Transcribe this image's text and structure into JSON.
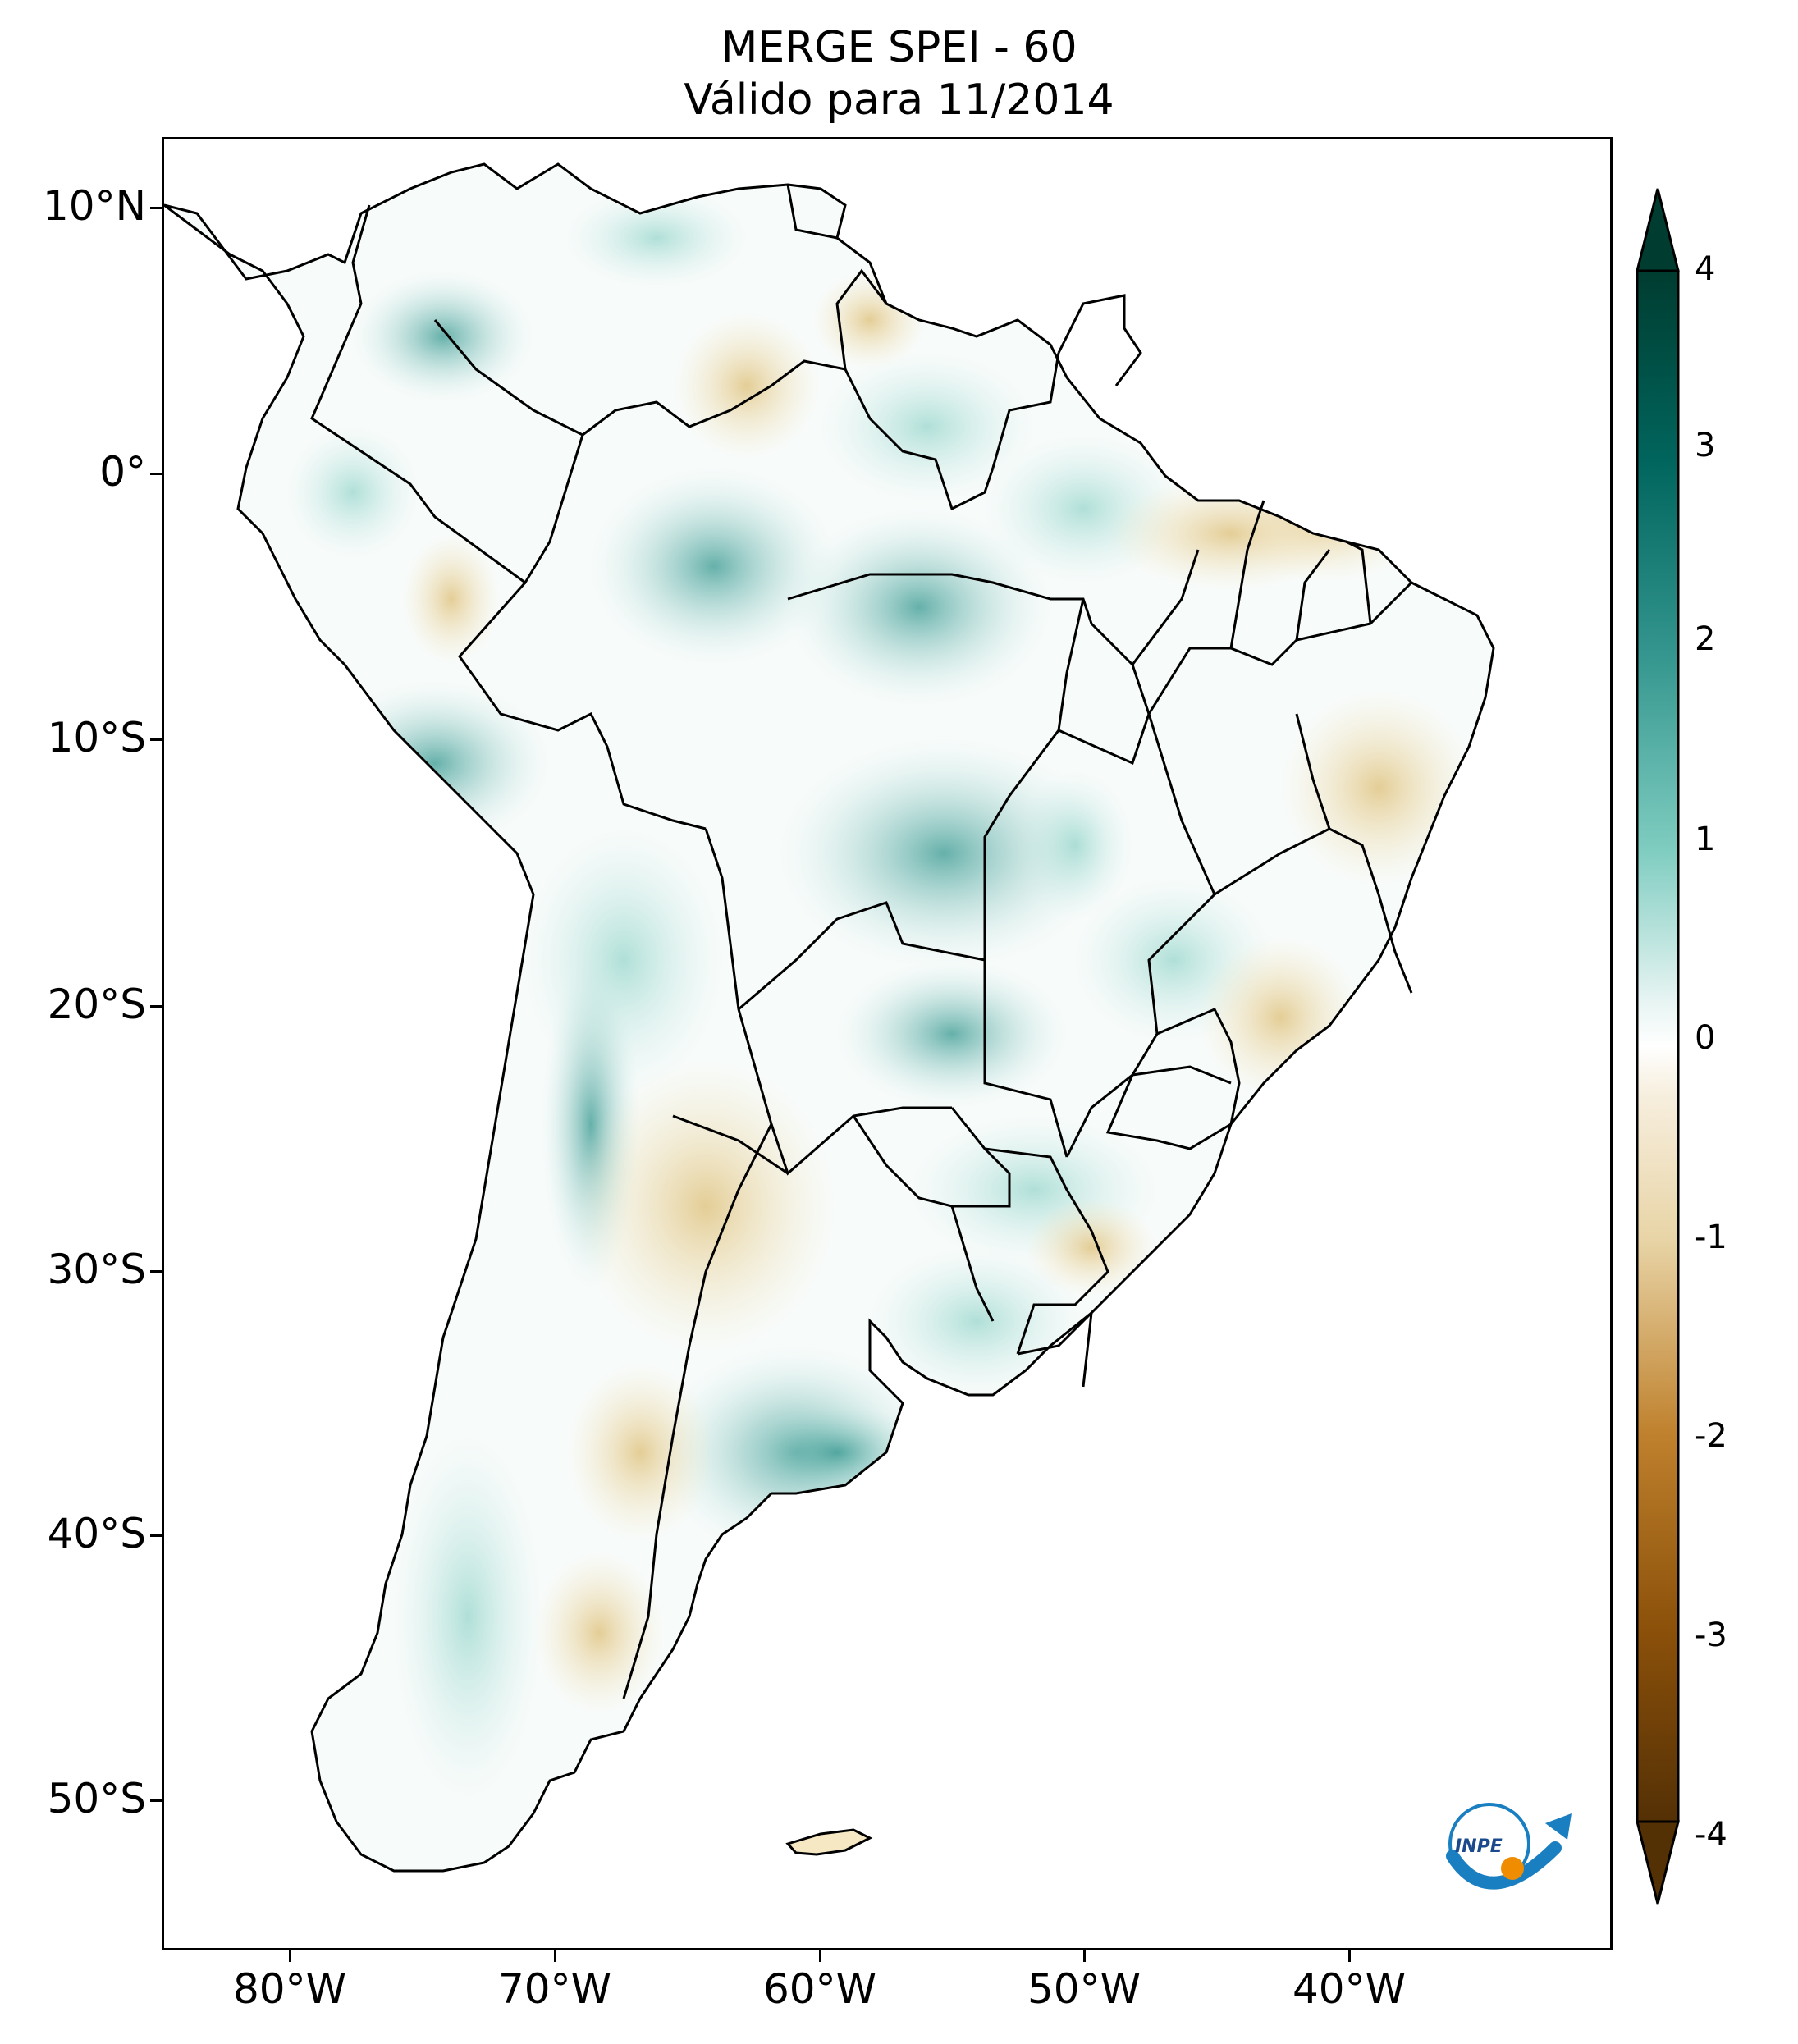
{
  "title": {
    "line1": "MERGE   SPEI - 60",
    "line2": "Válido para 11/2014"
  },
  "axes": {
    "lat_labels": [
      "10°N",
      "0°",
      "10°S",
      "20°S",
      "30°S",
      "40°S",
      "50°S"
    ],
    "lon_labels": [
      "80°W",
      "70°W",
      "60°W",
      "50°W",
      "40°W"
    ]
  },
  "colorbar": {
    "labels": [
      "4",
      "3",
      "2",
      "1",
      "0",
      "-1",
      "-2",
      "-3",
      "-4"
    ],
    "min": -4,
    "max": 4,
    "colors": {
      "dry_extreme": "#543005",
      "dry": "#bf812d",
      "dry_light": "#f6e8c3",
      "neutral": "#ffffff",
      "wet_light": "#c7eae5",
      "wet": "#35978f",
      "wet_extreme": "#003c30"
    }
  },
  "logo": {
    "text": "INPE"
  }
}
